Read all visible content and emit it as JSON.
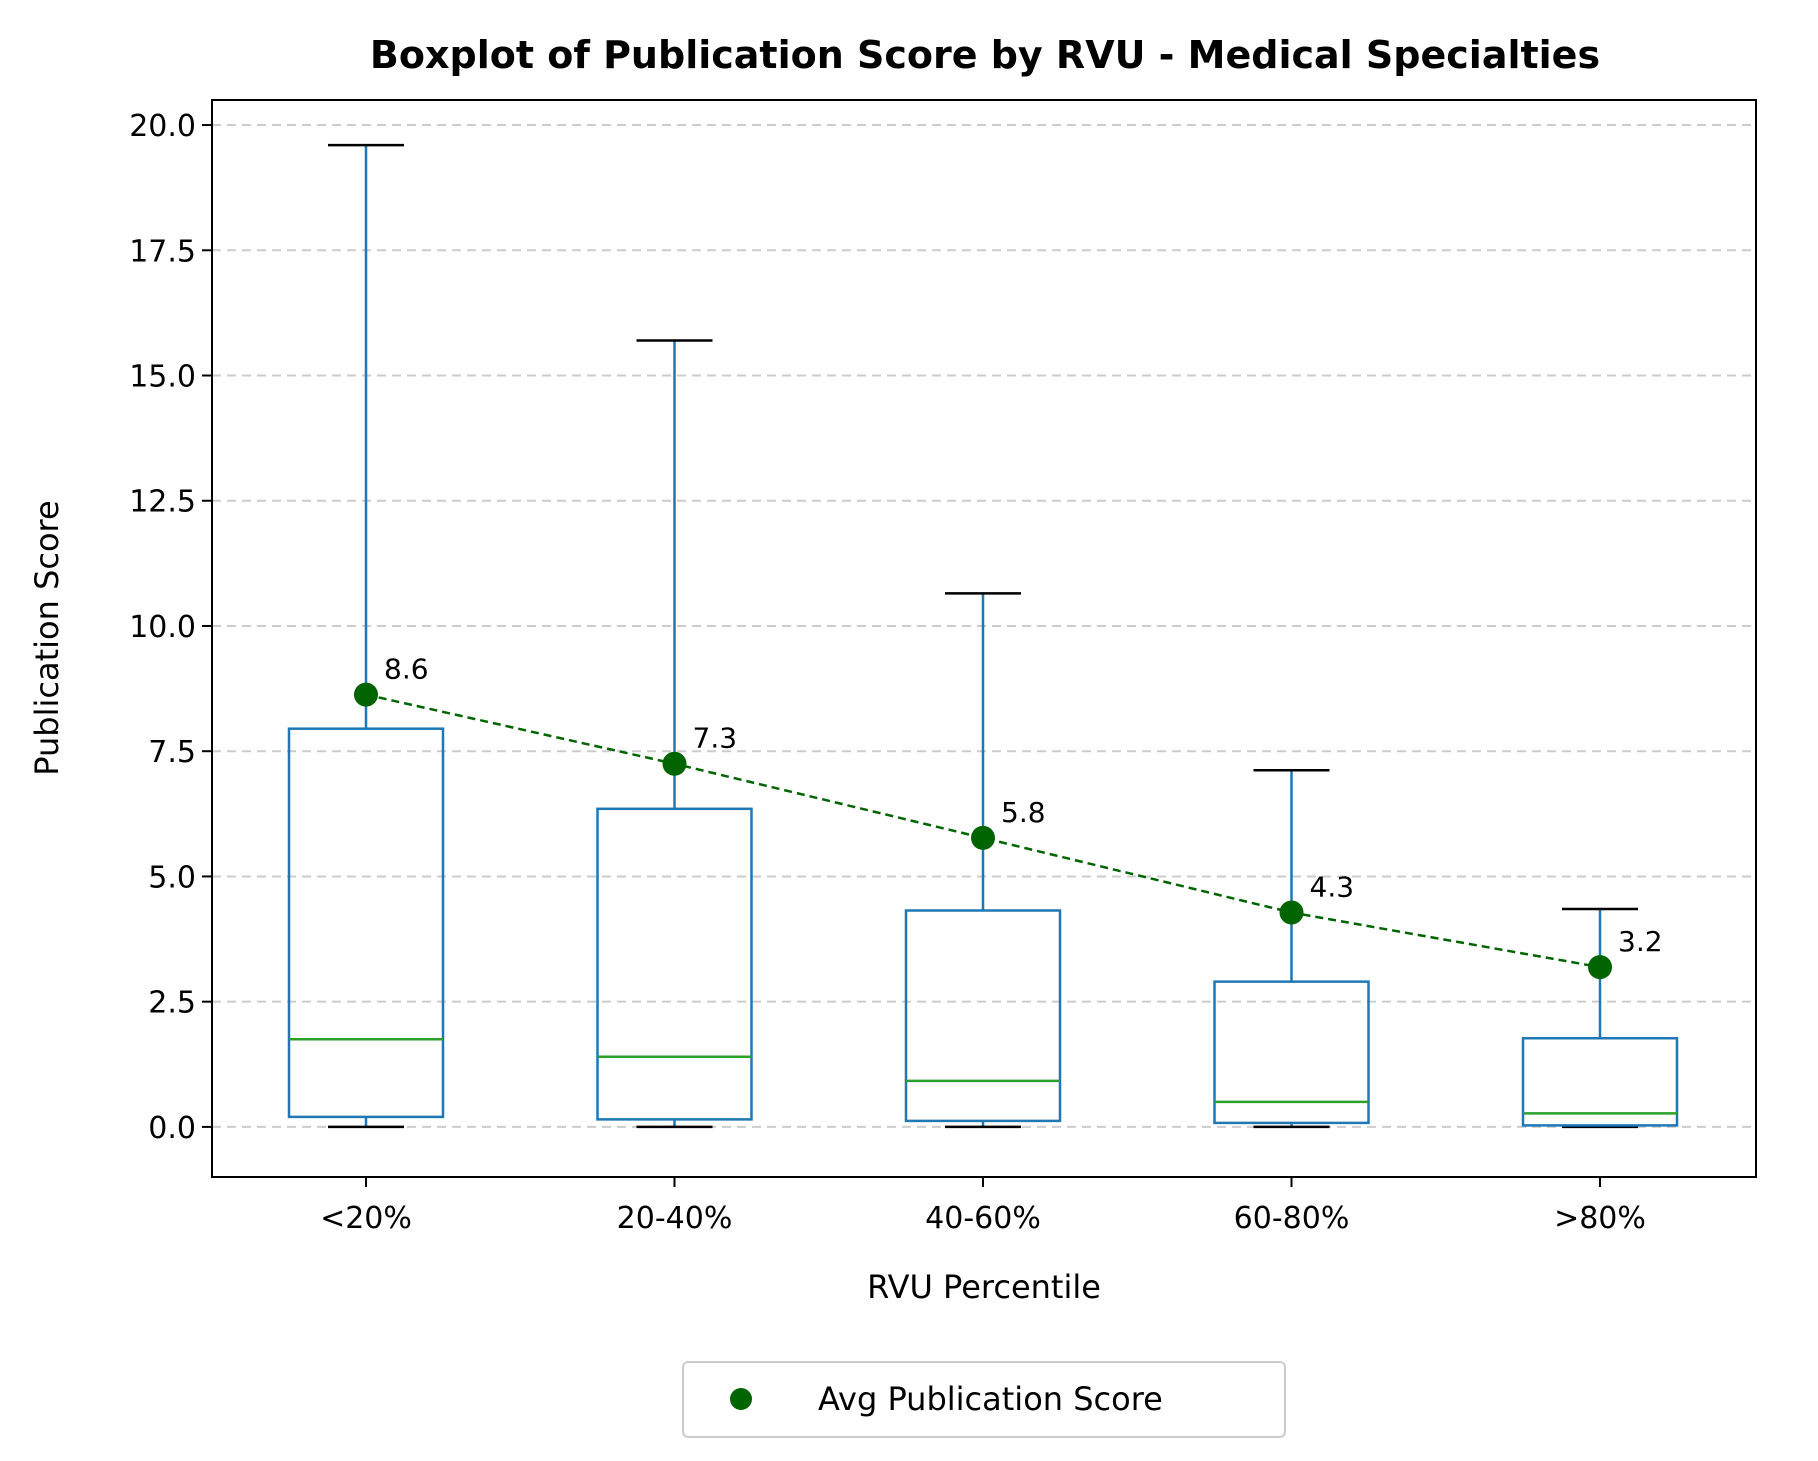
{
  "chart_data": {
    "type": "boxplot",
    "title": "Boxplot of Publication Score by RVU - Medical Specialties",
    "xlabel": "RVU Percentile",
    "ylabel": "Publication Score",
    "ylim": [
      -1.0,
      20.5
    ],
    "yticks": [
      0.0,
      2.5,
      5.0,
      7.5,
      10.0,
      12.5,
      15.0,
      17.5,
      20.0
    ],
    "ytick_labels": [
      "0.0",
      "2.5",
      "5.0",
      "7.5",
      "10.0",
      "12.5",
      "15.0",
      "17.5",
      "20.0"
    ],
    "grid": "y-dashed",
    "categories": [
      "<20%",
      "20-40%",
      "40-60%",
      "60-80%",
      ">80%"
    ],
    "boxes": [
      {
        "whisker_low": 0.0,
        "q1": 0.2,
        "median": 1.75,
        "q3": 7.95,
        "whisker_high": 19.6
      },
      {
        "whisker_low": 0.0,
        "q1": 0.15,
        "median": 1.4,
        "q3": 6.35,
        "whisker_high": 15.7
      },
      {
        "whisker_low": 0.0,
        "q1": 0.12,
        "median": 0.92,
        "q3": 4.32,
        "whisker_high": 10.65
      },
      {
        "whisker_low": 0.0,
        "q1": 0.08,
        "median": 0.5,
        "q3": 2.9,
        "whisker_high": 7.12
      },
      {
        "whisker_low": 0.0,
        "q1": 0.03,
        "median": 0.27,
        "q3": 1.77,
        "whisker_high": 4.35
      }
    ],
    "average_series": {
      "name": "Avg Publication Score",
      "values": [
        8.63,
        7.25,
        5.77,
        4.28,
        3.19
      ],
      "labels": [
        "8.6",
        "7.3",
        "5.8",
        "4.3",
        "3.2"
      ]
    },
    "legend": "bottom-center",
    "colors": {
      "box": "#1f77b4",
      "median": "#2ca02c",
      "whisker_cap": "#000000",
      "average": "#006400",
      "grid": "#cccccc"
    }
  }
}
